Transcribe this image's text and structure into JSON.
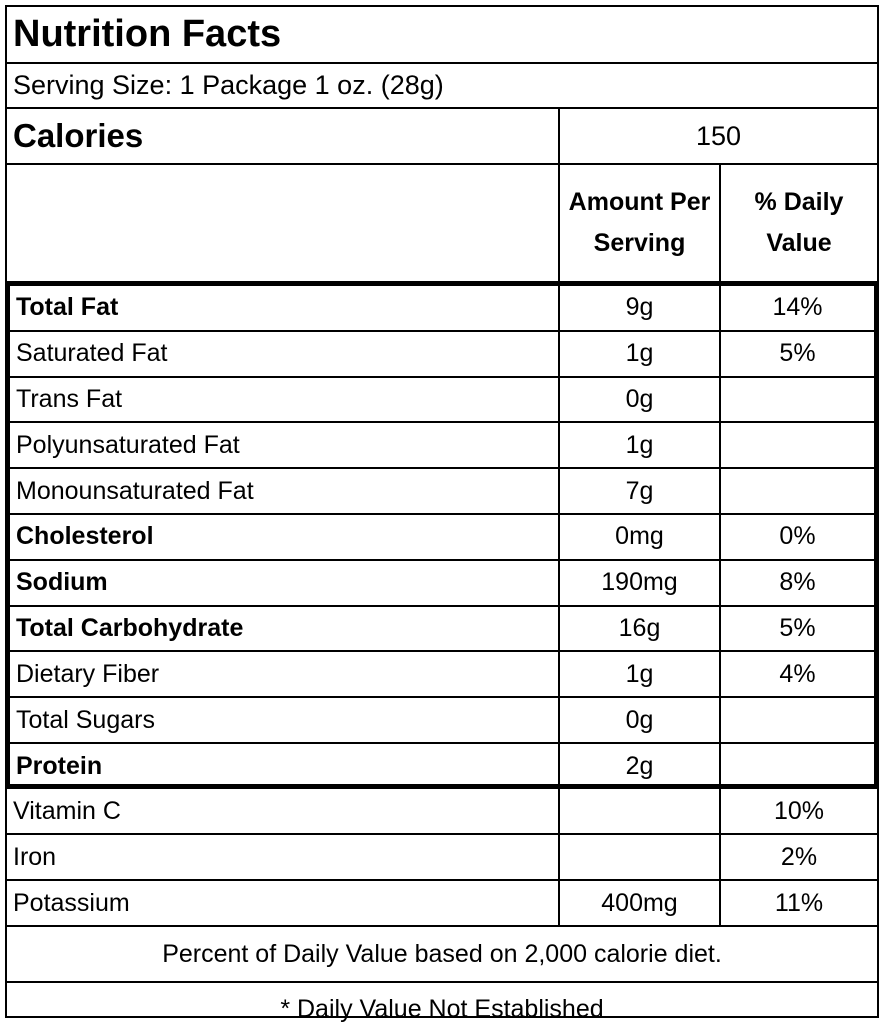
{
  "title": "Nutrition Facts",
  "serving_size": "Serving Size: 1 Package 1 oz. (28g)",
  "calories": {
    "label": "Calories",
    "value": "150"
  },
  "headers": {
    "amount": "Amount Per Serving",
    "daily_value": "% Daily Value"
  },
  "nutrients": [
    {
      "name": "Total Fat",
      "amount": "9g",
      "dv": "14%"
    },
    {
      "name": "Saturated Fat",
      "amount": "1g",
      "dv": "5%"
    },
    {
      "name": "Trans Fat",
      "amount": "0g",
      "dv": ""
    },
    {
      "name": "Polyunsaturated Fat",
      "amount": "1g",
      "dv": ""
    },
    {
      "name": "Monounsaturated Fat",
      "amount": "7g",
      "dv": ""
    },
    {
      "name": "Cholesterol",
      "amount": "0mg",
      "dv": "0%"
    },
    {
      "name": "Sodium",
      "amount": "190mg",
      "dv": "8%"
    },
    {
      "name": "Total Carbohydrate",
      "amount": "16g",
      "dv": "5%"
    },
    {
      "name": "Dietary Fiber",
      "amount": "1g",
      "dv": "4%"
    },
    {
      "name": "Total Sugars",
      "amount": "0g",
      "dv": ""
    },
    {
      "name": "Protein",
      "amount": "2g",
      "dv": ""
    }
  ],
  "vitamins": [
    {
      "name": "Vitamin C",
      "amount": "",
      "dv": "10%"
    },
    {
      "name": "Iron",
      "amount": "",
      "dv": "2%"
    },
    {
      "name": "Potassium",
      "amount": "400mg",
      "dv": "11%"
    }
  ],
  "footnotes": {
    "daily_value_basis": "Percent of Daily Value based on 2,000 calorie diet.",
    "not_established": "* Daily Value Not Established"
  }
}
